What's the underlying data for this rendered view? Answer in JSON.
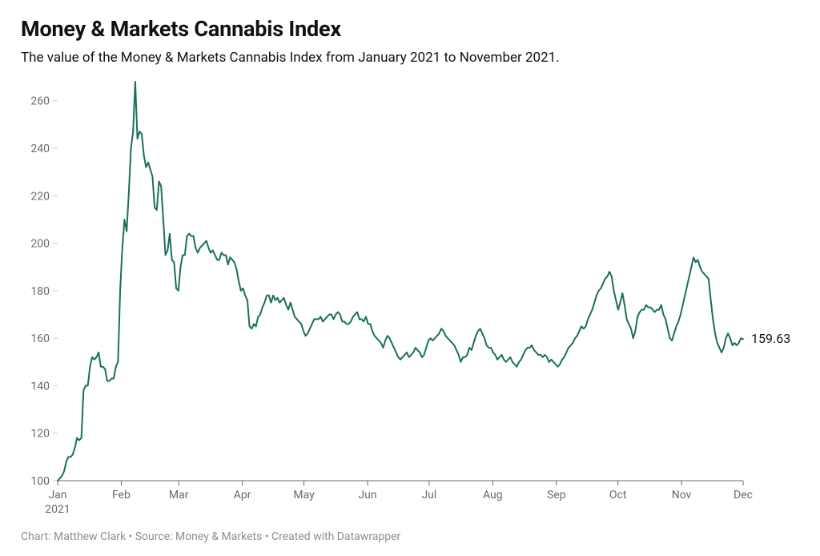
{
  "title": "Money & Markets Cannabis Index",
  "subtitle": "The value of the Money & Markets Cannabis Index from January 2021 to November 2021.",
  "footer": "Chart: Matthew Clark • Source: Money & Markets • Created with Datawrapper",
  "chart": {
    "type": "line",
    "line_color": "#1a6f5c",
    "line_width": 2,
    "background_color": "#ffffff",
    "axis_color": "#646b70",
    "axis_text_color": "#646b70",
    "grid_color": "#c9ced2",
    "grid_dash": "0",
    "label_fontsize": 14,
    "end_label_color": "#111111",
    "end_label_fontsize": 16,
    "end_value_text": "159.63",
    "x_axis": {
      "min": 0,
      "max": 334,
      "ticks": [
        {
          "pos": 0,
          "label": "Jan",
          "sublabel": "2021"
        },
        {
          "pos": 31,
          "label": "Feb"
        },
        {
          "pos": 59,
          "label": "Mar"
        },
        {
          "pos": 90,
          "label": "Apr"
        },
        {
          "pos": 120,
          "label": "May"
        },
        {
          "pos": 151,
          "label": "Jun"
        },
        {
          "pos": 181,
          "label": "Jul"
        },
        {
          "pos": 212,
          "label": "Aug"
        },
        {
          "pos": 243,
          "label": "Sep"
        },
        {
          "pos": 273,
          "label": "Oct"
        },
        {
          "pos": 304,
          "label": "Nov"
        },
        {
          "pos": 334,
          "label": "Dec"
        }
      ]
    },
    "y_axis": {
      "min": 100,
      "max": 268,
      "ticks": [
        100,
        120,
        140,
        160,
        180,
        200,
        220,
        240,
        260
      ]
    },
    "series": [
      100,
      101,
      102,
      104,
      108,
      110,
      110,
      111,
      114,
      118,
      117,
      118,
      138,
      140,
      140,
      148,
      152,
      151,
      152,
      154,
      148,
      148,
      147,
      142,
      142,
      143,
      143,
      148,
      150,
      180,
      198,
      210,
      205,
      221,
      240,
      247,
      268,
      244,
      247,
      246,
      237,
      232,
      234,
      231,
      228,
      215,
      214,
      226,
      224,
      210,
      195,
      197,
      204,
      193,
      192,
      181,
      180,
      190,
      195,
      195,
      203,
      204,
      203,
      203,
      198,
      196,
      198,
      199,
      200,
      201,
      198,
      196,
      197,
      195,
      193,
      193,
      196,
      195,
      195,
      191,
      194,
      193,
      192,
      189,
      184,
      180,
      181,
      178,
      176,
      165,
      164,
      166,
      165,
      169,
      170,
      173,
      175,
      178,
      178,
      175,
      178,
      176,
      177,
      175,
      176,
      177,
      174,
      172,
      175,
      172,
      169,
      168,
      167,
      166,
      163,
      161,
      162,
      164,
      166,
      168,
      168,
      168,
      169,
      167,
      168,
      169,
      170,
      170,
      168,
      170,
      171,
      170,
      167,
      167,
      166,
      166,
      167,
      169,
      170,
      171,
      168,
      168,
      167,
      169,
      166,
      166,
      163,
      161,
      160,
      159,
      158,
      156,
      159,
      161,
      160,
      158,
      156,
      154,
      152,
      151,
      152,
      153,
      154,
      152,
      153,
      154,
      156,
      155,
      154,
      152,
      153,
      156,
      159,
      160,
      159,
      160,
      161,
      162,
      164,
      163,
      161,
      160,
      159,
      158,
      157,
      155,
      153,
      150,
      152,
      152,
      153,
      156,
      155,
      158,
      161,
      163,
      164,
      162,
      160,
      157,
      156,
      156,
      154,
      153,
      151,
      152,
      153,
      151,
      150,
      151,
      152,
      150,
      149,
      148,
      150,
      151,
      153,
      155,
      156,
      156,
      157,
      155,
      154,
      153,
      153,
      152,
      153,
      152,
      150,
      151,
      150,
      149,
      148,
      149,
      151,
      152,
      154,
      156,
      157,
      158,
      160,
      161,
      163,
      165,
      164,
      165,
      168,
      170,
      172,
      175,
      178,
      180,
      181,
      183,
      185,
      186,
      188,
      186,
      180,
      176,
      172,
      175,
      179,
      174,
      168,
      166,
      164,
      160,
      163,
      169,
      171,
      172,
      172,
      174,
      173,
      173,
      172,
      171,
      172,
      172,
      174,
      170,
      168,
      164,
      160,
      159,
      162,
      165,
      167,
      170,
      174,
      178,
      182,
      186,
      190,
      194,
      192,
      193,
      190,
      188,
      187,
      186,
      185,
      176,
      168,
      162,
      158,
      156,
      154,
      156,
      160,
      162,
      160,
      157,
      158,
      157,
      158,
      160,
      159.63
    ]
  }
}
